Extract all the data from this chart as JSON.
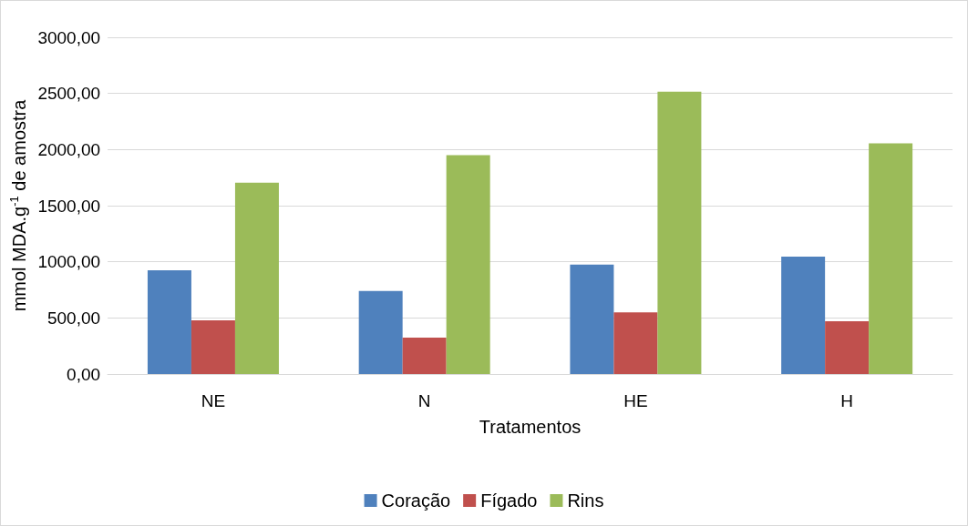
{
  "chart_data": {
    "type": "bar",
    "xlabel": "Tratamentos",
    "ylabel": "mmol MDA.g$^{-1}$ de amostra",
    "categories": [
      "NE",
      "N",
      "HE",
      "H"
    ],
    "series": [
      {
        "name": "Coração",
        "color": "#4f81bd",
        "values": [
          925,
          740,
          975,
          1045
        ]
      },
      {
        "name": "Fígado",
        "color": "#c0504d",
        "values": [
          478,
          325,
          550,
          470
        ]
      },
      {
        "name": "Rins",
        "color": "#9bbb59",
        "values": [
          1705,
          1950,
          2515,
          2055
        ]
      }
    ],
    "ylim": [
      0,
      3000
    ],
    "yticks": [
      {
        "value": 0,
        "label": "0,00"
      },
      {
        "value": 500,
        "label": "500,00"
      },
      {
        "value": 1000,
        "label": "1000,00"
      },
      {
        "value": 1500,
        "label": "1500,00"
      },
      {
        "value": 2000,
        "label": "2000,00"
      },
      {
        "value": 2500,
        "label": "2500,00"
      },
      {
        "value": 3000,
        "label": "3000,00"
      }
    ],
    "grid": "y",
    "legend": "bottom"
  }
}
